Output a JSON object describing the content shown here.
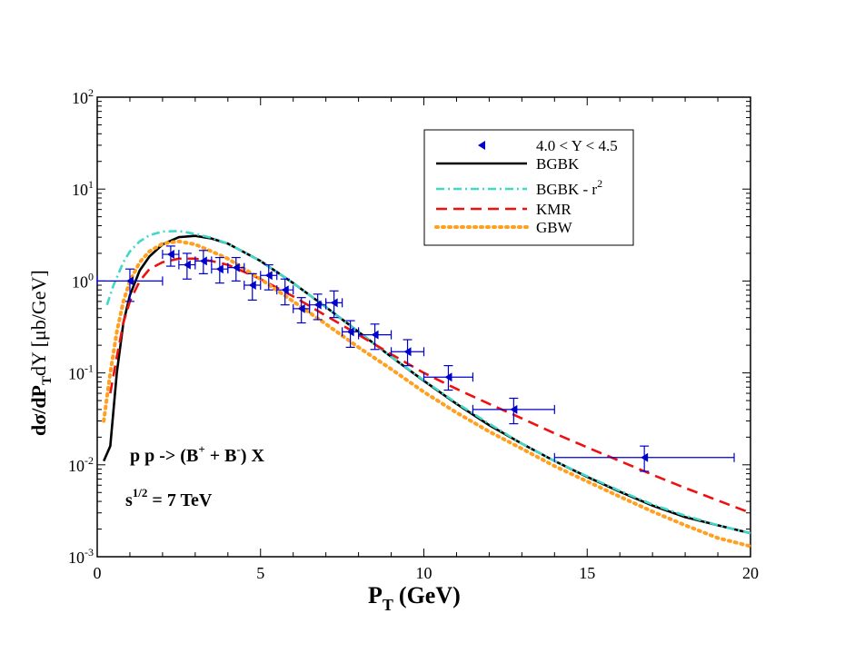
{
  "chart_data": {
    "type": "line",
    "title": "",
    "xlabel": "P",
    "xlabel_sub": "T",
    "xlabel_unit": "(GeV)",
    "ylabel_parts": {
      "d_sigma": "dσ/dP",
      "sub_T": "T",
      "dY_unit": "dY [μb/GeV]"
    },
    "xlim": [
      0,
      20
    ],
    "ylim": [
      0.001,
      100
    ],
    "yscale": "log",
    "x_ticks": [
      0,
      5,
      10,
      15,
      20
    ],
    "x_tick_labels": [
      "0",
      "5",
      "10",
      "15",
      "20"
    ],
    "y_ticks": [
      {
        "base": "10",
        "exp": "-3",
        "value": 0.001
      },
      {
        "base": "10",
        "exp": "-2",
        "value": 0.01
      },
      {
        "base": "10",
        "exp": "-1",
        "value": 0.1
      },
      {
        "base": "10",
        "exp": "0",
        "value": 1
      },
      {
        "base": "10",
        "exp": "1",
        "value": 10
      },
      {
        "base": "10",
        "exp": "2",
        "value": 100
      }
    ],
    "data_points": {
      "name": "4.0 < Y < 4.5",
      "color": "#0000cc",
      "points": [
        {
          "x": 1.0,
          "y": 1.0,
          "xerr": 1.0,
          "ylo": 0.6,
          "yhi": 1.35
        },
        {
          "x": 2.25,
          "y": 1.95,
          "xerr": 0.25,
          "ylo": 1.45,
          "yhi": 2.4
        },
        {
          "x": 2.75,
          "y": 1.5,
          "xerr": 0.25,
          "ylo": 1.05,
          "yhi": 2.0
        },
        {
          "x": 3.25,
          "y": 1.65,
          "xerr": 0.25,
          "ylo": 1.2,
          "yhi": 2.15
        },
        {
          "x": 3.75,
          "y": 1.35,
          "xerr": 0.25,
          "ylo": 0.95,
          "yhi": 1.8
        },
        {
          "x": 4.25,
          "y": 1.4,
          "xerr": 0.25,
          "ylo": 1.0,
          "yhi": 1.8
        },
        {
          "x": 4.75,
          "y": 0.9,
          "xerr": 0.25,
          "ylo": 0.62,
          "yhi": 1.2
        },
        {
          "x": 5.25,
          "y": 1.15,
          "xerr": 0.25,
          "ylo": 0.8,
          "yhi": 1.5
        },
        {
          "x": 5.75,
          "y": 0.8,
          "xerr": 0.25,
          "ylo": 0.55,
          "yhi": 1.05
        },
        {
          "x": 6.25,
          "y": 0.5,
          "xerr": 0.25,
          "ylo": 0.35,
          "yhi": 0.66
        },
        {
          "x": 6.75,
          "y": 0.55,
          "xerr": 0.25,
          "ylo": 0.38,
          "yhi": 0.72
        },
        {
          "x": 7.25,
          "y": 0.58,
          "xerr": 0.25,
          "ylo": 0.4,
          "yhi": 0.78
        },
        {
          "x": 7.75,
          "y": 0.28,
          "xerr": 0.25,
          "ylo": 0.19,
          "yhi": 0.37
        },
        {
          "x": 8.5,
          "y": 0.26,
          "xerr": 0.5,
          "ylo": 0.18,
          "yhi": 0.34
        },
        {
          "x": 9.5,
          "y": 0.17,
          "xerr": 0.5,
          "ylo": 0.12,
          "yhi": 0.23
        },
        {
          "x": 10.75,
          "y": 0.09,
          "xerr": 0.75,
          "ylo": 0.065,
          "yhi": 0.12
        },
        {
          "x": 12.75,
          "y": 0.04,
          "xerr": 1.25,
          "ylo": 0.028,
          "yhi": 0.053
        },
        {
          "x": 16.75,
          "y": 0.012,
          "xerr": 2.75,
          "ylo": 0.0085,
          "yhi": 0.016
        }
      ]
    },
    "series": [
      {
        "name": "BGBK",
        "color": "#000000",
        "dash": "solid",
        "x": [
          0.2,
          0.4,
          0.6,
          0.8,
          1.0,
          1.3,
          1.6,
          2.0,
          2.5,
          3.0,
          3.5,
          4.0,
          5.0,
          6.0,
          7.0,
          8.0,
          9.0,
          10.0,
          11.0,
          12.0,
          13.0,
          14.0,
          15.0,
          16.0,
          17.0,
          18.0,
          19.0,
          20.0
        ],
        "y": [
          0.011,
          0.016,
          0.1,
          0.35,
          0.7,
          1.3,
          1.85,
          2.5,
          3.0,
          3.1,
          2.9,
          2.55,
          1.65,
          0.95,
          0.52,
          0.28,
          0.15,
          0.082,
          0.046,
          0.027,
          0.017,
          0.011,
          0.0074,
          0.0051,
          0.0036,
          0.0027,
          0.0022,
          0.0018
        ]
      },
      {
        "name": "BGBK - r",
        "name_sup": "2",
        "color": "#40d8c8",
        "dash": "dashdot",
        "x": [
          0.3,
          0.5,
          0.8,
          1.0,
          1.3,
          1.6,
          2.0,
          2.5,
          3.0,
          3.5,
          4.0,
          5.0,
          6.0,
          7.0,
          8.0,
          9.0,
          10.0,
          11.0,
          12.0,
          13.0,
          14.0,
          15.0,
          16.0,
          17.0,
          18.0,
          19.0,
          20.0
        ],
        "y": [
          0.55,
          0.9,
          1.6,
          2.1,
          2.7,
          3.15,
          3.45,
          3.5,
          3.25,
          2.95,
          2.55,
          1.65,
          0.95,
          0.52,
          0.28,
          0.15,
          0.083,
          0.047,
          0.028,
          0.017,
          0.011,
          0.0075,
          0.0052,
          0.0037,
          0.0028,
          0.0022,
          0.0018
        ]
      },
      {
        "name": "KMR",
        "color": "#ee1111",
        "dash": "dashed",
        "x": [
          0.4,
          0.6,
          0.8,
          1.0,
          1.3,
          1.6,
          2.0,
          2.5,
          3.0,
          3.5,
          4.0,
          5.0,
          6.0,
          7.0,
          8.0,
          9.0,
          10.0,
          11.0,
          12.0,
          13.0,
          14.0,
          15.0,
          16.0,
          17.0,
          18.0,
          19.0,
          20.0
        ],
        "y": [
          0.06,
          0.15,
          0.35,
          0.6,
          1.0,
          1.35,
          1.6,
          1.75,
          1.75,
          1.65,
          1.5,
          1.05,
          0.68,
          0.42,
          0.26,
          0.16,
          0.1,
          0.067,
          0.046,
          0.032,
          0.022,
          0.0155,
          0.011,
          0.0078,
          0.0056,
          0.0041,
          0.003
        ]
      },
      {
        "name": "GBW",
        "color": "#ffa020",
        "dash": "dotted",
        "x": [
          0.2,
          0.4,
          0.6,
          0.8,
          1.0,
          1.3,
          1.6,
          2.0,
          2.5,
          3.0,
          3.5,
          4.0,
          5.0,
          6.0,
          7.0,
          8.0,
          9.0,
          10.0,
          11.0,
          12.0,
          13.0,
          14.0,
          15.0,
          16.0,
          17.0,
          18.0,
          19.0,
          20.0
        ],
        "y": [
          0.03,
          0.1,
          0.28,
          0.6,
          1.0,
          1.6,
          2.1,
          2.55,
          2.7,
          2.5,
          2.1,
          1.75,
          1.05,
          0.6,
          0.34,
          0.19,
          0.11,
          0.062,
          0.037,
          0.023,
          0.015,
          0.0097,
          0.0066,
          0.0045,
          0.0031,
          0.0022,
          0.0016,
          0.0013
        ]
      }
    ],
    "legend_position": "top-right",
    "annotations": {
      "process": {
        "a": "p p -> (B",
        "sup1": "+",
        "b": " + B",
        "sup2": "-",
        "c": ") X"
      },
      "energy": {
        "a": "s",
        "sup": "1/2",
        "b": " = 7 TeV"
      }
    }
  }
}
